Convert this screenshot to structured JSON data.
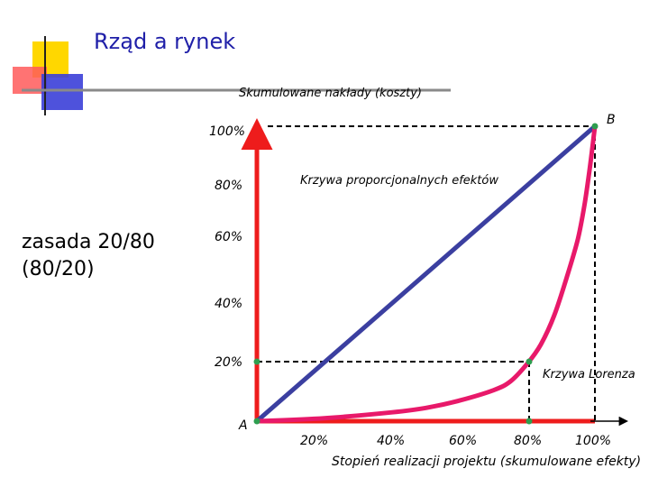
{
  "slide": {
    "title": "Rząd a rynek",
    "side_note_line1": "zasada 20/80",
    "side_note_line2": "(80/20)"
  },
  "colors": {
    "title": "#1f1fa8",
    "axis": "#ee1c1c",
    "proportional_line": "#3b3fa0",
    "lorenz_curve": "#e8196a",
    "marker": "#2e9e4f",
    "logo_yellow": "#ffd700",
    "logo_red": "#ff4d4d",
    "logo_blue": "#3b3fd8"
  },
  "chart_data": {
    "type": "line",
    "ylabel": "Skumulowane nakłady (koszty)",
    "xlabel": "Stopień realizacji projektu (skumulowane efekty)",
    "x_ticks": [
      "20%",
      "40%",
      "60%",
      "80%",
      "100%"
    ],
    "y_ticks": [
      "20%",
      "40%",
      "60%",
      "80%",
      "100%"
    ],
    "xlim": [
      0,
      100
    ],
    "ylim": [
      0,
      100
    ],
    "origin_label": "A",
    "end_label": "B",
    "series": [
      {
        "name": "Krzywa proporcjonalnych efektów",
        "x": [
          0,
          100
        ],
        "y": [
          0,
          100
        ]
      },
      {
        "name": "Krzywa Lorenza",
        "x": [
          0,
          20,
          40,
          50,
          60,
          70,
          75,
          80,
          84,
          88,
          92,
          95,
          97,
          98.5,
          100
        ],
        "y": [
          0,
          1,
          3,
          4.5,
          7,
          10.5,
          13.5,
          19.5,
          26,
          36,
          50,
          62,
          74,
          86,
          100
        ]
      }
    ],
    "reference_points": [
      {
        "x": 80,
        "y": 20
      }
    ]
  }
}
